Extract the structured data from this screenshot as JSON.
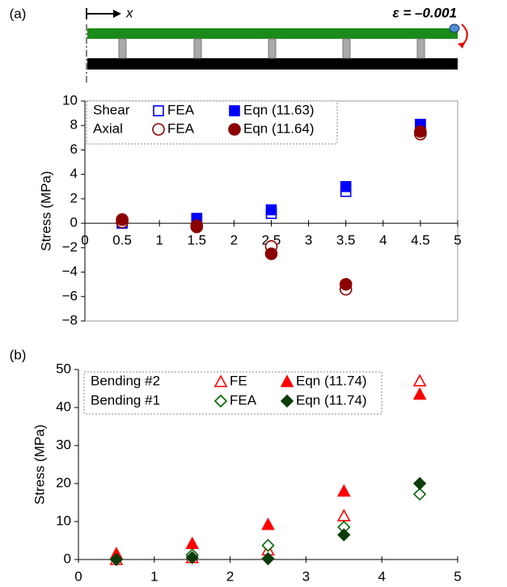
{
  "diagram": {
    "axis_label": "x",
    "strain_label": "ε = –0.001"
  },
  "chart_data": [
    {
      "type": "scatter",
      "panel_label": "(a)",
      "y_label": "Stress  (MPa)",
      "x": [
        0.5,
        1.5,
        2.5,
        3.5,
        4.5
      ],
      "xlim": [
        0,
        5
      ],
      "xticks": [
        0,
        0.5,
        1,
        1.5,
        2,
        2.5,
        3,
        3.5,
        4,
        4.5,
        5
      ],
      "ylim": [
        -8,
        10
      ],
      "yticks": [
        {
          "value": -8,
          "label": "−8"
        },
        {
          "value": -6,
          "label": "−6"
        },
        {
          "value": -4,
          "label": "−4"
        },
        {
          "value": -2,
          "label": "−2"
        },
        0,
        2,
        4,
        6,
        8,
        10
      ],
      "frame": true,
      "series": [
        {
          "group": "Shear",
          "name": "FEA",
          "color": "#0000ff",
          "marker": "square",
          "filled": false,
          "values": [
            0,
            0.3,
            0.8,
            2.6,
            8.0
          ]
        },
        {
          "group": "Shear",
          "name": "Eqn (11.63)",
          "color": "#0000ff",
          "marker": "square",
          "filled": true,
          "values": [
            0.1,
            0.4,
            1.1,
            3.0,
            8.1
          ]
        },
        {
          "group": "Axial",
          "name": "FEA",
          "color": "#8b0000",
          "marker": "circle",
          "filled": false,
          "values": [
            0.1,
            -0.2,
            -1.9,
            -5.4,
            7.3
          ]
        },
        {
          "group": "Axial",
          "name": "Eqn (11.64)",
          "color": "#8b0000",
          "marker": "circle",
          "filled": true,
          "values": [
            0.3,
            -0.3,
            -2.5,
            -5.0,
            7.5
          ]
        }
      ]
    },
    {
      "type": "scatter",
      "panel_label": "(b)",
      "y_label": "Stress  (MPa)",
      "x": [
        0.5,
        1.5,
        2.5,
        3.5,
        4.5
      ],
      "xlim": [
        0,
        5
      ],
      "xticks": [
        0,
        1,
        2,
        3,
        4,
        5
      ],
      "ylim": [
        0,
        50
      ],
      "yticks": [
        0,
        10,
        20,
        30,
        40,
        50
      ],
      "frame": false,
      "series": [
        {
          "group": "Bending #2",
          "name": "FE",
          "color": "#ff0000",
          "marker": "triangle",
          "filled": false,
          "values": [
            0,
            0.5,
            2.5,
            11.5,
            47
          ]
        },
        {
          "group": "Bending #2",
          "name": "Eqn (11.74)",
          "color": "#ff0000",
          "marker": "triangle",
          "filled": true,
          "values": [
            1.5,
            4.2,
            9.2,
            18,
            43.5
          ]
        },
        {
          "group": "Bending #1",
          "name": "FEA",
          "color": "#006400",
          "marker": "diamond",
          "filled": false,
          "values": [
            0,
            1.2,
            3.7,
            8.5,
            17.2
          ]
        },
        {
          "group": "Bending #1",
          "name": "Eqn (11.74)",
          "color": "#0b3d0b",
          "marker": "diamond",
          "filled": true,
          "values": [
            0,
            0.5,
            0.2,
            6.5,
            20
          ]
        }
      ]
    }
  ]
}
